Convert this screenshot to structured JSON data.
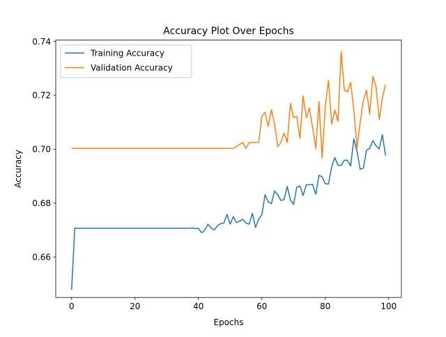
{
  "chart_data": {
    "type": "line",
    "title": "Accuracy Plot Over Epochs",
    "xlabel": "Epochs",
    "ylabel": "Accuracy",
    "xlim": [
      -5,
      104
    ],
    "ylim": [
      0.645,
      0.7405
    ],
    "xticks": [
      0,
      20,
      40,
      60,
      80,
      100
    ],
    "yticks": [
      0.66,
      0.68,
      0.7,
      0.72,
      0.74
    ],
    "ytick_labels": [
      "0.66",
      "0.68",
      "0.70",
      "0.72",
      "0.74"
    ],
    "grid": false,
    "legend": "top-left",
    "series": [
      {
        "name": "Training Accuracy",
        "color": "#1f77b4",
        "values": [
          0.6478,
          0.6707,
          0.6707,
          0.6707,
          0.6707,
          0.6707,
          0.6707,
          0.6707,
          0.6707,
          0.6707,
          0.6707,
          0.6707,
          0.6707,
          0.6707,
          0.6707,
          0.6707,
          0.6707,
          0.6707,
          0.6707,
          0.6707,
          0.6707,
          0.6707,
          0.6707,
          0.6707,
          0.6707,
          0.6707,
          0.6707,
          0.6707,
          0.6707,
          0.6707,
          0.6707,
          0.6707,
          0.6707,
          0.6707,
          0.6707,
          0.6707,
          0.6707,
          0.6707,
          0.6708,
          0.6706,
          0.6706,
          0.669,
          0.67,
          0.6722,
          0.6708,
          0.6701,
          0.6716,
          0.6724,
          0.6726,
          0.6758,
          0.6722,
          0.675,
          0.6728,
          0.6733,
          0.674,
          0.6726,
          0.6722,
          0.6762,
          0.671,
          0.6741,
          0.6756,
          0.6831,
          0.6805,
          0.6798,
          0.6845,
          0.6831,
          0.681,
          0.6813,
          0.6862,
          0.6812,
          0.6795,
          0.6859,
          0.6864,
          0.6828,
          0.6868,
          0.6868,
          0.687,
          0.6833,
          0.6903,
          0.6898,
          0.6872,
          0.6871,
          0.6934,
          0.6969,
          0.694,
          0.694,
          0.6959,
          0.6959,
          0.6938,
          0.7038,
          0.6992,
          0.6926,
          0.693,
          0.6996,
          0.7003,
          0.7032,
          0.7013,
          0.7001,
          0.7054,
          0.6976
        ]
      },
      {
        "name": "Validation Accuracy",
        "color": "#ff7f0e",
        "values": [
          0.7003,
          0.7003,
          0.7003,
          0.7003,
          0.7003,
          0.7003,
          0.7003,
          0.7003,
          0.7003,
          0.7003,
          0.7003,
          0.7003,
          0.7003,
          0.7003,
          0.7003,
          0.7003,
          0.7003,
          0.7003,
          0.7003,
          0.7003,
          0.7003,
          0.7003,
          0.7003,
          0.7003,
          0.7003,
          0.7003,
          0.7003,
          0.7003,
          0.7003,
          0.7003,
          0.7003,
          0.7003,
          0.7003,
          0.7003,
          0.7003,
          0.7003,
          0.7003,
          0.7003,
          0.7003,
          0.7003,
          0.7003,
          0.7003,
          0.7003,
          0.7003,
          0.7003,
          0.7003,
          0.7003,
          0.7003,
          0.7003,
          0.7003,
          0.7003,
          0.7003,
          0.701,
          0.7018,
          0.7025,
          0.7003,
          0.7025,
          0.7025,
          0.7025,
          0.7025,
          0.7123,
          0.7137,
          0.7085,
          0.7147,
          0.7093,
          0.701,
          0.7025,
          0.706,
          0.7025,
          0.717,
          0.7117,
          0.7123,
          0.704,
          0.7198,
          0.7117,
          0.7152,
          0.708,
          0.7003,
          0.7177,
          0.6968,
          0.716,
          0.7255,
          0.7093,
          0.7145,
          0.7103,
          0.7363,
          0.722,
          0.7213,
          0.7248,
          0.7145,
          0.7003,
          0.71,
          0.718,
          0.722,
          0.713,
          0.727,
          0.7233,
          0.711,
          0.719,
          0.724
        ]
      }
    ]
  }
}
